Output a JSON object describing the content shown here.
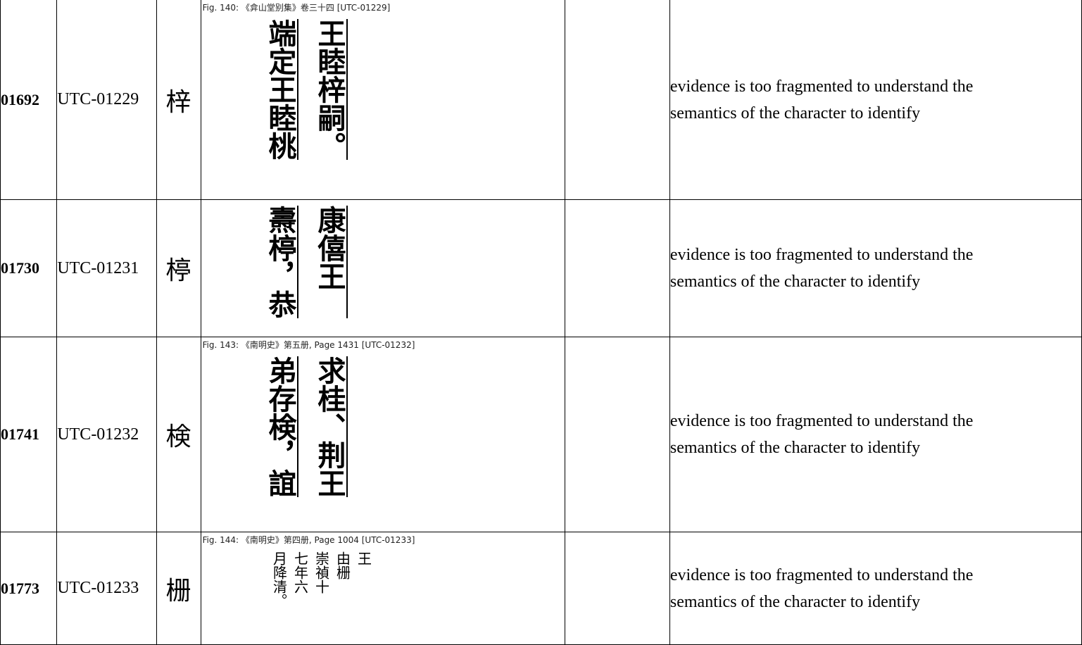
{
  "table": {
    "rows": [
      {
        "number": "01692",
        "utc": "UTC-01229",
        "character": "梓",
        "figure": {
          "caption": "Fig. 140: 《弇山堂别集》卷三十四 [UTC-01229]",
          "columns": [
            "王睦梓嗣。",
            "端定王睦桃"
          ]
        },
        "note": "evidence is too fragmented to understand the semantics of the character to identify"
      },
      {
        "number": "01730",
        "utc": "UTC-01231",
        "character": "楟",
        "figure": {
          "columns": [
            "康僖王",
            "燾楟，恭"
          ]
        },
        "note": "evidence is too fragmented to understand the semantics of the character to identify"
      },
      {
        "number": "01741",
        "utc": "UTC-01232",
        "character": "検",
        "figure": {
          "caption": "Fig. 143: 《南明史》第五册, Page 1431 [UTC-01232]",
          "columns": [
            "求桂、荆王",
            "弟存検，誼"
          ]
        },
        "note": "evidence is too fragmented to understand the semantics of the character to identify"
      },
      {
        "number": "01773",
        "utc": "UTC-01233",
        "character": "栅",
        "figure": {
          "caption": "Fig. 144: 《南明史》第四册, Page 1004 [UTC-01233]",
          "columns": [
            "王",
            "由栅",
            "崇禎十",
            "七年六",
            "月降清。"
          ]
        },
        "note": "evidence is too fragmented to understand the semantics of the character to identify"
      }
    ]
  }
}
